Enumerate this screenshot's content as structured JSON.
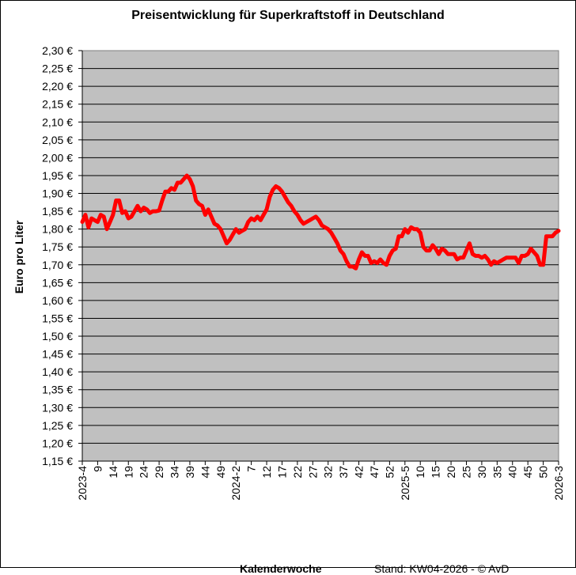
{
  "chart_data": {
    "type": "line",
    "title": "Preisentwicklung für Superkraftstoff in Deutschland",
    "xlabel": "Kalenderwoche",
    "ylabel": "Euro pro Liter",
    "footnote": "Stand: KW04-2026 - © AvD",
    "ylim": [
      1.15,
      2.3
    ],
    "ystep": 0.05,
    "grid": "horizontal",
    "line_color": "#ff0000",
    "plot_background": "#c0c0c0",
    "x_tick_labels": [
      "2023-4",
      "9",
      "14",
      "19",
      "24",
      "29",
      "34",
      "39",
      "44",
      "49",
      "2024-2",
      "7",
      "12",
      "17",
      "22",
      "27",
      "32",
      "37",
      "42",
      "47",
      "52",
      "2025-5",
      "10",
      "15",
      "20",
      "25",
      "30",
      "35",
      "40",
      "45",
      "50",
      "2026-3"
    ],
    "x_tick_every": 5,
    "values": [
      1.82,
      1.84,
      1.805,
      1.83,
      1.825,
      1.82,
      1.84,
      1.835,
      1.8,
      1.82,
      1.84,
      1.88,
      1.88,
      1.845,
      1.85,
      1.83,
      1.835,
      1.85,
      1.865,
      1.85,
      1.86,
      1.855,
      1.845,
      1.85,
      1.85,
      1.852,
      1.88,
      1.905,
      1.905,
      1.915,
      1.91,
      1.93,
      1.93,
      1.94,
      1.95,
      1.94,
      1.92,
      1.88,
      1.87,
      1.865,
      1.84,
      1.855,
      1.835,
      1.815,
      1.81,
      1.8,
      1.78,
      1.76,
      1.77,
      1.785,
      1.8,
      1.79,
      1.795,
      1.8,
      1.82,
      1.83,
      1.825,
      1.835,
      1.825,
      1.84,
      1.855,
      1.89,
      1.91,
      1.92,
      1.915,
      1.905,
      1.89,
      1.875,
      1.865,
      1.85,
      1.84,
      1.825,
      1.815,
      1.82,
      1.825,
      1.83,
      1.835,
      1.825,
      1.81,
      1.805,
      1.8,
      1.79,
      1.775,
      1.76,
      1.74,
      1.73,
      1.71,
      1.695,
      1.695,
      1.69,
      1.715,
      1.735,
      1.725,
      1.725,
      1.705,
      1.71,
      1.705,
      1.715,
      1.705,
      1.7,
      1.725,
      1.74,
      1.745,
      1.78,
      1.78,
      1.8,
      1.79,
      1.805,
      1.8,
      1.8,
      1.79,
      1.75,
      1.74,
      1.74,
      1.755,
      1.745,
      1.73,
      1.745,
      1.74,
      1.73,
      1.73,
      1.73,
      1.715,
      1.72,
      1.72,
      1.74,
      1.76,
      1.73,
      1.725,
      1.725,
      1.72,
      1.725,
      1.715,
      1.7,
      1.71,
      1.705,
      1.71,
      1.715,
      1.72,
      1.72,
      1.72,
      1.72,
      1.705,
      1.725,
      1.725,
      1.73,
      1.745,
      1.735,
      1.725,
      1.7,
      1.7,
      1.78,
      1.78,
      1.78,
      1.79,
      1.795
    ]
  }
}
